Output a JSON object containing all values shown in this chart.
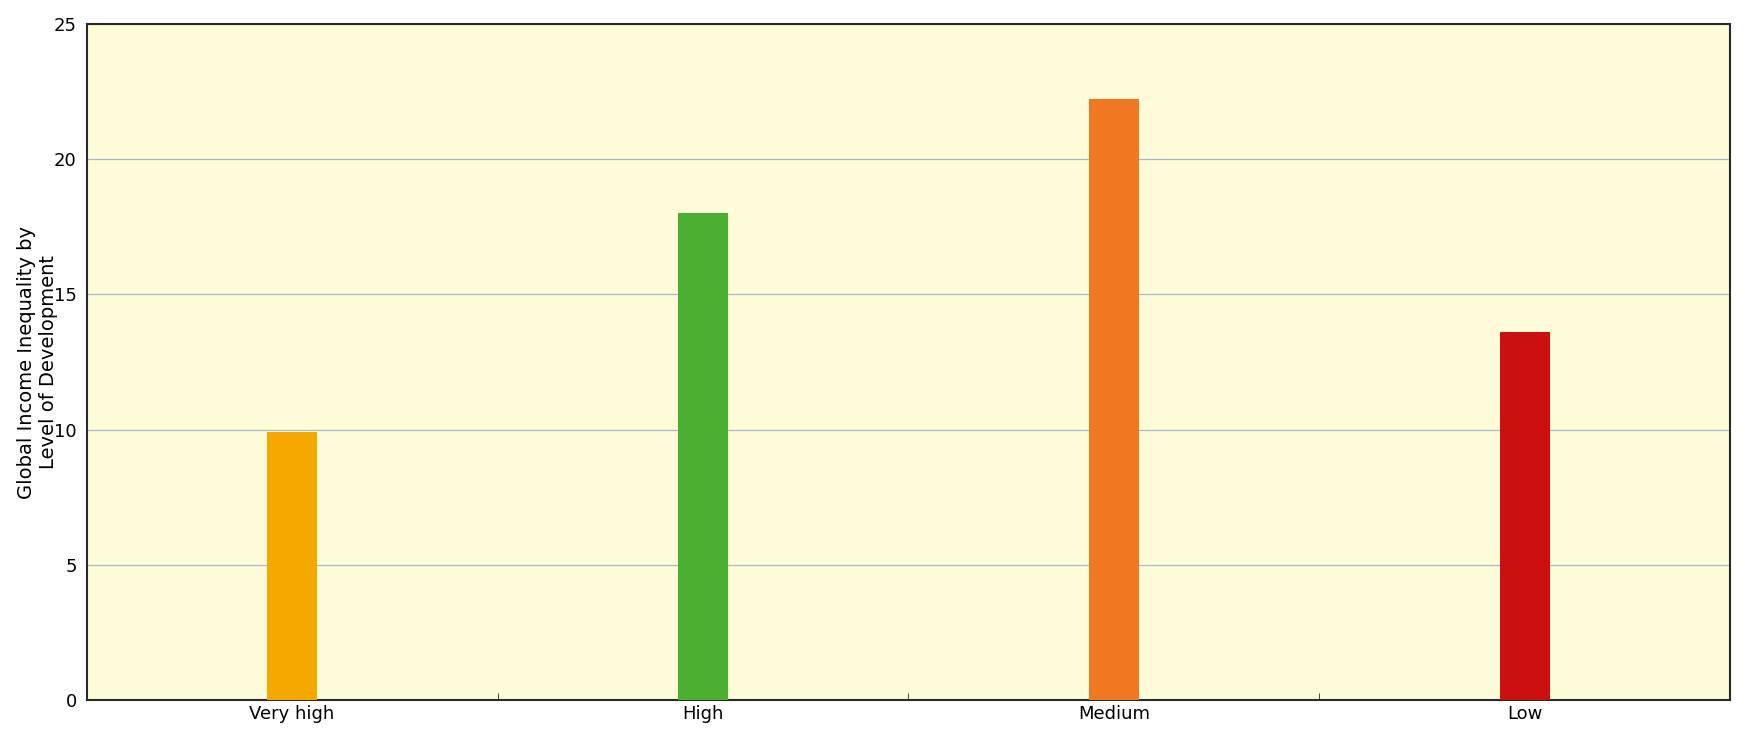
{
  "categories": [
    "Very high",
    "High",
    "Medium",
    "Low"
  ],
  "values": [
    9.9,
    18.0,
    22.2,
    13.6
  ],
  "bar_colors": [
    "#F5A800",
    "#4CAF32",
    "#F07820",
    "#CC1010"
  ],
  "ylabel": "Global Income Inequality by\nLevel of Development",
  "ylim": [
    0,
    25
  ],
  "yticks": [
    0,
    5,
    10,
    15,
    20,
    25
  ],
  "background_color": "#FEFBD8",
  "fig_background": "#FFFFFF",
  "grid_color": "#A8B8C8",
  "bar_width": 0.12,
  "ylabel_fontsize": 14,
  "tick_fontsize": 13,
  "border_color": "#2A2A2A",
  "shadow_color": "#A0B0C0"
}
